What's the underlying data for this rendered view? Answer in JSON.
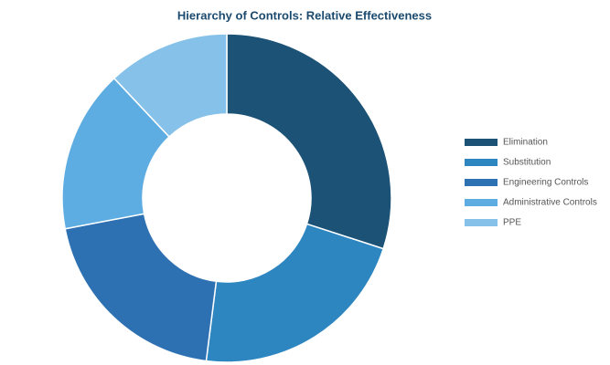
{
  "chart_data": {
    "type": "donut",
    "title": "Hierarchy of Controls: Relative Effectiveness",
    "categories": [
      "Elimination",
      "Substitution",
      "Engineering Controls",
      "Administrative Controls",
      "PPE"
    ],
    "values": [
      30,
      22,
      20,
      16,
      12
    ],
    "colors": [
      "#1b5276",
      "#2e86c1",
      "#2e71b3",
      "#5dade2",
      "#85c1e9"
    ],
    "legend": "right"
  }
}
